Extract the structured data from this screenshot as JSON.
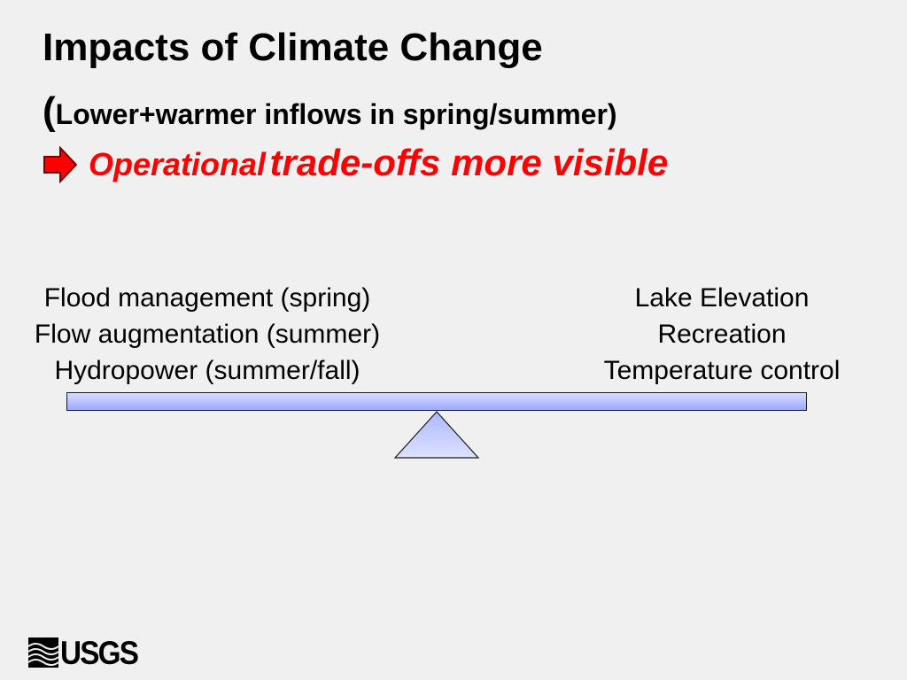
{
  "slide": {
    "title": "Impacts of Climate Change",
    "subtitle_open_paren": "(",
    "subtitle_text": "Lower+warmer inflows in spring/summer)",
    "emphasis_small": "Operational",
    "emphasis_big": "trade-offs more visible",
    "arrow_color": "#ff0000"
  },
  "left_column": {
    "items": [
      "Flood management (spring)",
      "Flow augmentation (summer)",
      "Hydropower (summer/fall)"
    ]
  },
  "right_column": {
    "items": [
      "Lake Elevation",
      "Recreation",
      "Temperature control"
    ]
  },
  "seesaw": {
    "beam_color": "#b8c0ff",
    "fulcrum_color": "#bcc4ff"
  },
  "logo": {
    "text": "USGS",
    "icon": "usgs-wave-icon"
  }
}
